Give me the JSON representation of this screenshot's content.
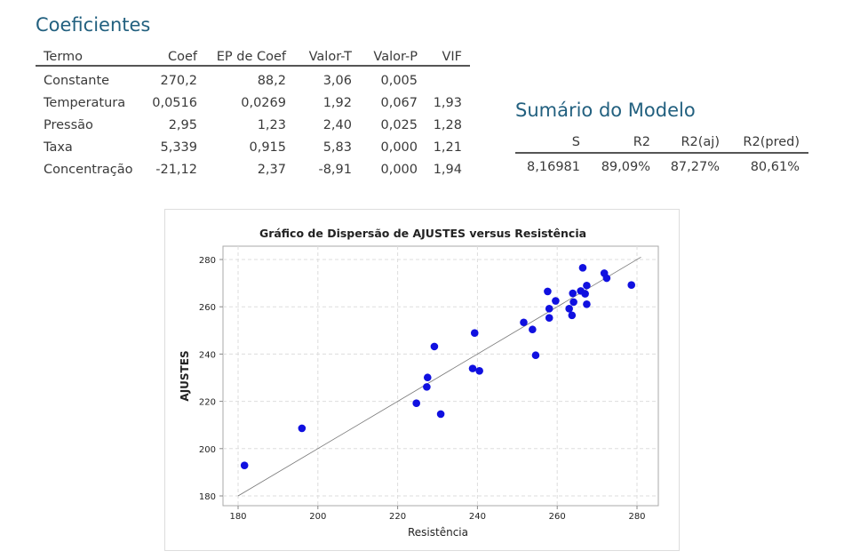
{
  "coef": {
    "title": "Coeficientes",
    "headers": [
      "Termo",
      "Coef",
      "EP de Coef",
      "Valor-T",
      "Valor-P",
      "VIF"
    ],
    "rows": [
      [
        "Constante",
        "270,2",
        "88,2",
        "3,06",
        "0,005",
        ""
      ],
      [
        "Temperatura",
        "0,0516",
        "0,0269",
        "1,92",
        "0,067",
        "1,93"
      ],
      [
        "Pressão",
        "2,95",
        "1,23",
        "2,40",
        "0,025",
        "1,28"
      ],
      [
        "Taxa",
        "5,339",
        "0,915",
        "5,83",
        "0,000",
        "1,21"
      ],
      [
        "Concentração",
        "-21,12",
        "2,37",
        "-8,91",
        "0,000",
        "1,94"
      ]
    ]
  },
  "summary": {
    "title": "Sumário do Modelo",
    "headers": [
      "S",
      "R2",
      "R2(aj)",
      "R2(pred)"
    ],
    "values": [
      "8,16981",
      "89,09%",
      "87,27%",
      "80,61%"
    ]
  },
  "chart_data": {
    "type": "scatter",
    "title": "Gráfico de Dispersão de AJUSTES versus Resistência",
    "xlabel": "Resistência",
    "ylabel": "AJUSTES",
    "xlim": [
      176,
      285
    ],
    "ylim": [
      175,
      285
    ],
    "xticks": [
      180,
      200,
      220,
      240,
      260,
      280
    ],
    "yticks": [
      180,
      200,
      220,
      240,
      260,
      280
    ],
    "grid": true,
    "reference_line": {
      "from": [
        180,
        180
      ],
      "to": [
        281,
        281
      ]
    },
    "point_color": "#1010e0",
    "points": [
      [
        181.6,
        192.9
      ],
      [
        196.0,
        208.6
      ],
      [
        224.7,
        219.2
      ],
      [
        227.3,
        226.1
      ],
      [
        227.5,
        230.1
      ],
      [
        229.2,
        243.2
      ],
      [
        230.8,
        214.6
      ],
      [
        238.8,
        233.9
      ],
      [
        240.5,
        232.9
      ],
      [
        239.3,
        248.9
      ],
      [
        251.6,
        253.4
      ],
      [
        253.8,
        250.4
      ],
      [
        254.6,
        239.5
      ],
      [
        257.6,
        266.5
      ],
      [
        258.0,
        259.2
      ],
      [
        258.0,
        255.3
      ],
      [
        259.6,
        262.5
      ],
      [
        263.0,
        259.2
      ],
      [
        263.7,
        256.4
      ],
      [
        263.9,
        265.7
      ],
      [
        264.1,
        262.0
      ],
      [
        265.9,
        266.7
      ],
      [
        266.4,
        276.5
      ],
      [
        267.0,
        265.5
      ],
      [
        267.4,
        269.0
      ],
      [
        267.4,
        261.1
      ],
      [
        271.8,
        274.2
      ],
      [
        272.4,
        272.1
      ],
      [
        278.6,
        269.2
      ]
    ]
  }
}
